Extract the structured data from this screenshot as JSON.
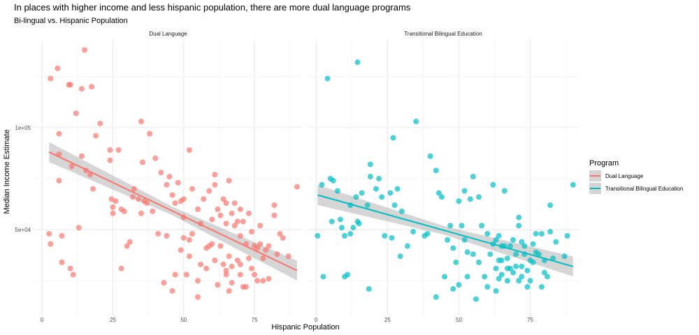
{
  "chart_data": {
    "type": "scatter",
    "title": "In places with higher income and less hispanic population, there are more dual language programs",
    "subtitle": "Bi-lingual vs. Hispanic Population",
    "xlabel": "Hispanic Population",
    "ylabel": "Median Income Estimate",
    "xlim": [
      -3,
      92
    ],
    "ylim": [
      8000,
      143000
    ],
    "x_ticks": [
      0,
      25,
      50,
      75
    ],
    "x_tick_labels": [
      "0",
      "25",
      "50",
      "75"
    ],
    "y_ticks": [
      50000,
      100000
    ],
    "y_tick_labels": [
      "5e+04",
      "1e+05"
    ],
    "grid": true,
    "legend": {
      "title": "Program",
      "position": "right",
      "entries": [
        {
          "label": "Dual Language",
          "color": "#F8766D"
        },
        {
          "label": "Transitional Bilingual Education",
          "color": "#00BFC4"
        }
      ]
    },
    "panels": [
      {
        "name": "Dual Language",
        "color": "#F8766D",
        "trend": {
          "x0": 2.5,
          "y0": 88000,
          "x1": 90,
          "y1": 30000,
          "band": 3500
        },
        "points": [
          [
            2.5,
            48000
          ],
          [
            3,
            43000
          ],
          [
            3,
            124000
          ],
          [
            5.5,
            129000
          ],
          [
            6,
            97000
          ],
          [
            6,
            74000
          ],
          [
            6,
            87000
          ],
          [
            7,
            47000
          ],
          [
            7,
            34000
          ],
          [
            9.5,
            121000
          ],
          [
            10,
            121000
          ],
          [
            10,
            31000
          ],
          [
            10.5,
            81000
          ],
          [
            11,
            28000
          ],
          [
            12,
            107000
          ],
          [
            13,
            51000
          ],
          [
            14,
            119000
          ],
          [
            14,
            86000
          ],
          [
            15,
            138000
          ],
          [
            15.5,
            79000
          ],
          [
            17,
            77000
          ],
          [
            17.5,
            120000
          ],
          [
            18,
            70000
          ],
          [
            19,
            96000
          ],
          [
            20.5,
            102000
          ],
          [
            24,
            84000
          ],
          [
            24,
            89000
          ],
          [
            24.5,
            65000
          ],
          [
            25,
            61000
          ],
          [
            25,
            58000
          ],
          [
            26,
            64000
          ],
          [
            27,
            89000
          ],
          [
            28,
            31000
          ],
          [
            28,
            60000
          ],
          [
            29,
            59000
          ],
          [
            30,
            42000
          ],
          [
            31,
            44000
          ],
          [
            32,
            66000
          ],
          [
            32.5,
            70000
          ],
          [
            34,
            65000
          ],
          [
            35,
            103000
          ],
          [
            35,
            58000
          ],
          [
            35.5,
            83000
          ],
          [
            36,
            64000
          ],
          [
            37,
            63000
          ],
          [
            38,
            97000
          ],
          [
            39,
            59000
          ],
          [
            40,
            85000
          ],
          [
            41,
            48000
          ],
          [
            42,
            78000
          ],
          [
            43,
            24000
          ],
          [
            44,
            47000
          ],
          [
            44,
            72000
          ],
          [
            45,
            76000
          ],
          [
            46,
            20000
          ],
          [
            46,
            67000
          ],
          [
            47,
            28000
          ],
          [
            47,
            63000
          ],
          [
            48,
            73000
          ],
          [
            49,
            64000
          ],
          [
            49,
            40000
          ],
          [
            50,
            65000
          ],
          [
            50,
            46000
          ],
          [
            50,
            56000
          ],
          [
            51,
            28000
          ],
          [
            52,
            37000
          ],
          [
            52,
            89000
          ],
          [
            52,
            45000
          ],
          [
            53,
            70000
          ],
          [
            53,
            48000
          ],
          [
            55,
            25000
          ],
          [
            55,
            17000
          ],
          [
            55,
            60000
          ],
          [
            56,
            33000
          ],
          [
            56,
            53000
          ],
          [
            57,
            65000
          ],
          [
            58,
            41000
          ],
          [
            58,
            31000
          ],
          [
            59,
            69000
          ],
          [
            59,
            42000
          ],
          [
            60,
            55000
          ],
          [
            60,
            43000
          ],
          [
            61,
            77000
          ],
          [
            61,
            72000
          ],
          [
            61,
            35000
          ],
          [
            62,
            60000
          ],
          [
            62,
            23000
          ],
          [
            63,
            57000
          ],
          [
            63,
            42000
          ],
          [
            64,
            33000
          ],
          [
            64,
            65000
          ],
          [
            65,
            63000
          ],
          [
            65,
            30000
          ],
          [
            65,
            28000
          ],
          [
            65,
            53000
          ],
          [
            66,
            74000
          ],
          [
            66,
            20000
          ],
          [
            66,
            37000
          ],
          [
            67,
            58000
          ],
          [
            67,
            24000
          ],
          [
            67,
            32000
          ],
          [
            68,
            52000
          ],
          [
            68,
            63000
          ],
          [
            69,
            54000
          ],
          [
            69,
            35000
          ],
          [
            70,
            28000
          ],
          [
            70,
            60000
          ],
          [
            70,
            47000
          ],
          [
            70,
            33000
          ],
          [
            71,
            22000
          ],
          [
            71,
            54000
          ],
          [
            72,
            43000
          ],
          [
            72,
            22000
          ],
          [
            73,
            36000
          ],
          [
            73,
            58000
          ],
          [
            74,
            49000
          ],
          [
            74,
            31000
          ],
          [
            75,
            28000
          ],
          [
            75,
            42000
          ],
          [
            76,
            25000
          ],
          [
            76,
            41000
          ],
          [
            77,
            52000
          ],
          [
            77,
            43000
          ],
          [
            78,
            36000
          ],
          [
            78,
            25000
          ],
          [
            79,
            40000
          ],
          [
            80,
            42000
          ],
          [
            80,
            26000
          ],
          [
            82,
            57000
          ],
          [
            82,
            62000
          ],
          [
            83,
            38000
          ],
          [
            84,
            48000
          ],
          [
            85,
            46000
          ],
          [
            87,
            37000
          ],
          [
            90,
            71000
          ]
        ]
      },
      {
        "name": "Transitional Bilingual Education",
        "color": "#00BFC4",
        "trend": {
          "x0": 0.5,
          "y0": 67000,
          "x1": 90,
          "y1": 32000,
          "band": 3500
        },
        "points": [
          [
            0.5,
            47000
          ],
          [
            2,
            72000
          ],
          [
            2.5,
            27000
          ],
          [
            4,
            124000
          ],
          [
            5,
            75000
          ],
          [
            5.5,
            54000
          ],
          [
            6,
            74000
          ],
          [
            7.5,
            69000
          ],
          [
            8.5,
            55000
          ],
          [
            9,
            51000
          ],
          [
            10,
            47000
          ],
          [
            10,
            27000
          ],
          [
            11,
            28000
          ],
          [
            12,
            62000
          ],
          [
            12,
            48000
          ],
          [
            13,
            51000
          ],
          [
            14,
            66000
          ],
          [
            14.5,
            132000
          ],
          [
            14.5,
            54000
          ],
          [
            15,
            53000
          ],
          [
            16,
            68000
          ],
          [
            18,
            62000
          ],
          [
            18.5,
            21000
          ],
          [
            19,
            76000
          ],
          [
            19,
            82000
          ],
          [
            21,
            70000
          ],
          [
            22,
            75000
          ],
          [
            23,
            66000
          ],
          [
            24,
            47000
          ],
          [
            26,
            68000
          ],
          [
            26.5,
            46000
          ],
          [
            27,
            95000
          ],
          [
            27.5,
            62000
          ],
          [
            28.5,
            70000
          ],
          [
            29.5,
            37000
          ],
          [
            30,
            59000
          ],
          [
            32,
            42000
          ],
          [
            34,
            49000
          ],
          [
            35,
            103000
          ],
          [
            38,
            47000
          ],
          [
            39,
            48000
          ],
          [
            40,
            86000
          ],
          [
            42,
            17000
          ],
          [
            42,
            79000
          ],
          [
            43,
            68000
          ],
          [
            44,
            66000
          ],
          [
            45,
            27000
          ],
          [
            46,
            45000
          ],
          [
            47,
            52000
          ],
          [
            48,
            41000
          ],
          [
            48,
            21000
          ],
          [
            49,
            34000
          ],
          [
            50,
            64000
          ],
          [
            50,
            23000
          ],
          [
            51,
            52000
          ],
          [
            52,
            69000
          ],
          [
            52,
            45000
          ],
          [
            53,
            39000
          ],
          [
            53,
            27000
          ],
          [
            54,
            65000
          ],
          [
            55,
            76000
          ],
          [
            55,
            38000
          ],
          [
            56,
            16000
          ],
          [
            57,
            34000
          ],
          [
            57,
            66000
          ],
          [
            58,
            52000
          ],
          [
            59,
            27000
          ],
          [
            60,
            48000
          ],
          [
            60,
            22000
          ],
          [
            61,
            38000
          ],
          [
            62,
            72000
          ],
          [
            62,
            43000
          ],
          [
            63,
            31000
          ],
          [
            63,
            45000
          ],
          [
            63,
            20000
          ],
          [
            64,
            35000
          ],
          [
            64,
            47000
          ],
          [
            64,
            26000
          ],
          [
            65,
            42000
          ],
          [
            65,
            35000
          ],
          [
            65,
            28000
          ],
          [
            66,
            69000
          ],
          [
            66,
            42000
          ],
          [
            67,
            31000
          ],
          [
            67,
            36000
          ],
          [
            67,
            25000
          ],
          [
            68,
            42000
          ],
          [
            68,
            31000
          ],
          [
            69,
            29000
          ],
          [
            69,
            45000
          ],
          [
            70,
            38000
          ],
          [
            70,
            32000
          ],
          [
            71,
            25000
          ],
          [
            71,
            56000
          ],
          [
            71,
            52000
          ],
          [
            72,
            44000
          ],
          [
            72,
            32000
          ],
          [
            72,
            27000
          ],
          [
            73,
            42000
          ],
          [
            73,
            38000
          ],
          [
            74,
            22000
          ],
          [
            74,
            30000
          ],
          [
            75,
            35000
          ],
          [
            75,
            25000
          ],
          [
            76,
            34000
          ],
          [
            76,
            43000
          ],
          [
            77,
            48000
          ],
          [
            77,
            39000
          ],
          [
            78,
            38000
          ],
          [
            79,
            48000
          ],
          [
            79,
            22000
          ],
          [
            80,
            29000
          ],
          [
            80,
            35000
          ],
          [
            81,
            27000
          ],
          [
            82,
            62000
          ],
          [
            82,
            49000
          ],
          [
            83,
            36000
          ],
          [
            84,
            44000
          ],
          [
            87,
            37000
          ],
          [
            88,
            47000
          ],
          [
            90,
            72000
          ]
        ]
      }
    ]
  }
}
